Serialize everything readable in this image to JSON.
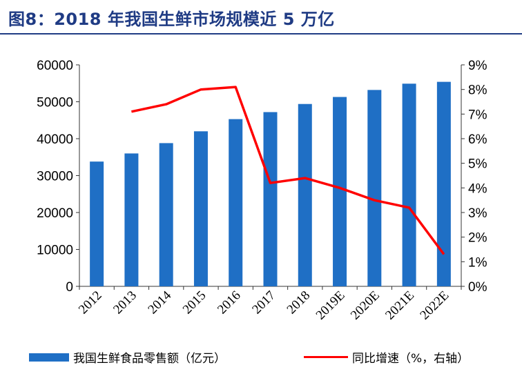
{
  "title": "图8：2018 年我国生鲜市场规模近 5 万亿",
  "colors": {
    "bar": "#1f6fc5",
    "line": "#ff0000",
    "title": "#1f3b84"
  },
  "chart_data": {
    "type": "bar",
    "categories": [
      "2012",
      "2013",
      "2014",
      "2015",
      "2016",
      "2017",
      "2018",
      "2019E",
      "2020E",
      "2021E",
      "2022E"
    ],
    "y_ticks": [
      "0",
      "10000",
      "20000",
      "30000",
      "40000",
      "50000",
      "60000"
    ],
    "y2_ticks": [
      "0%",
      "1%",
      "2%",
      "3%",
      "4%",
      "5%",
      "6%",
      "7%",
      "8%",
      "9%"
    ],
    "ylim": [
      0,
      60000
    ],
    "y2lim": [
      0,
      9
    ],
    "grid": false,
    "legend_position": "bottom",
    "series": [
      {
        "name": "我国生鲜食品零售额（亿元）",
        "type": "bar",
        "axis": "left",
        "values": [
          33800,
          36000,
          38800,
          42000,
          45300,
          47200,
          49400,
          51300,
          53200,
          54900,
          55400
        ]
      },
      {
        "name": "同比增速（%，右轴）",
        "type": "line",
        "axis": "right",
        "values": [
          null,
          7.1,
          7.4,
          8.0,
          8.1,
          4.2,
          4.4,
          4.0,
          3.5,
          3.2,
          1.3
        ]
      }
    ]
  }
}
